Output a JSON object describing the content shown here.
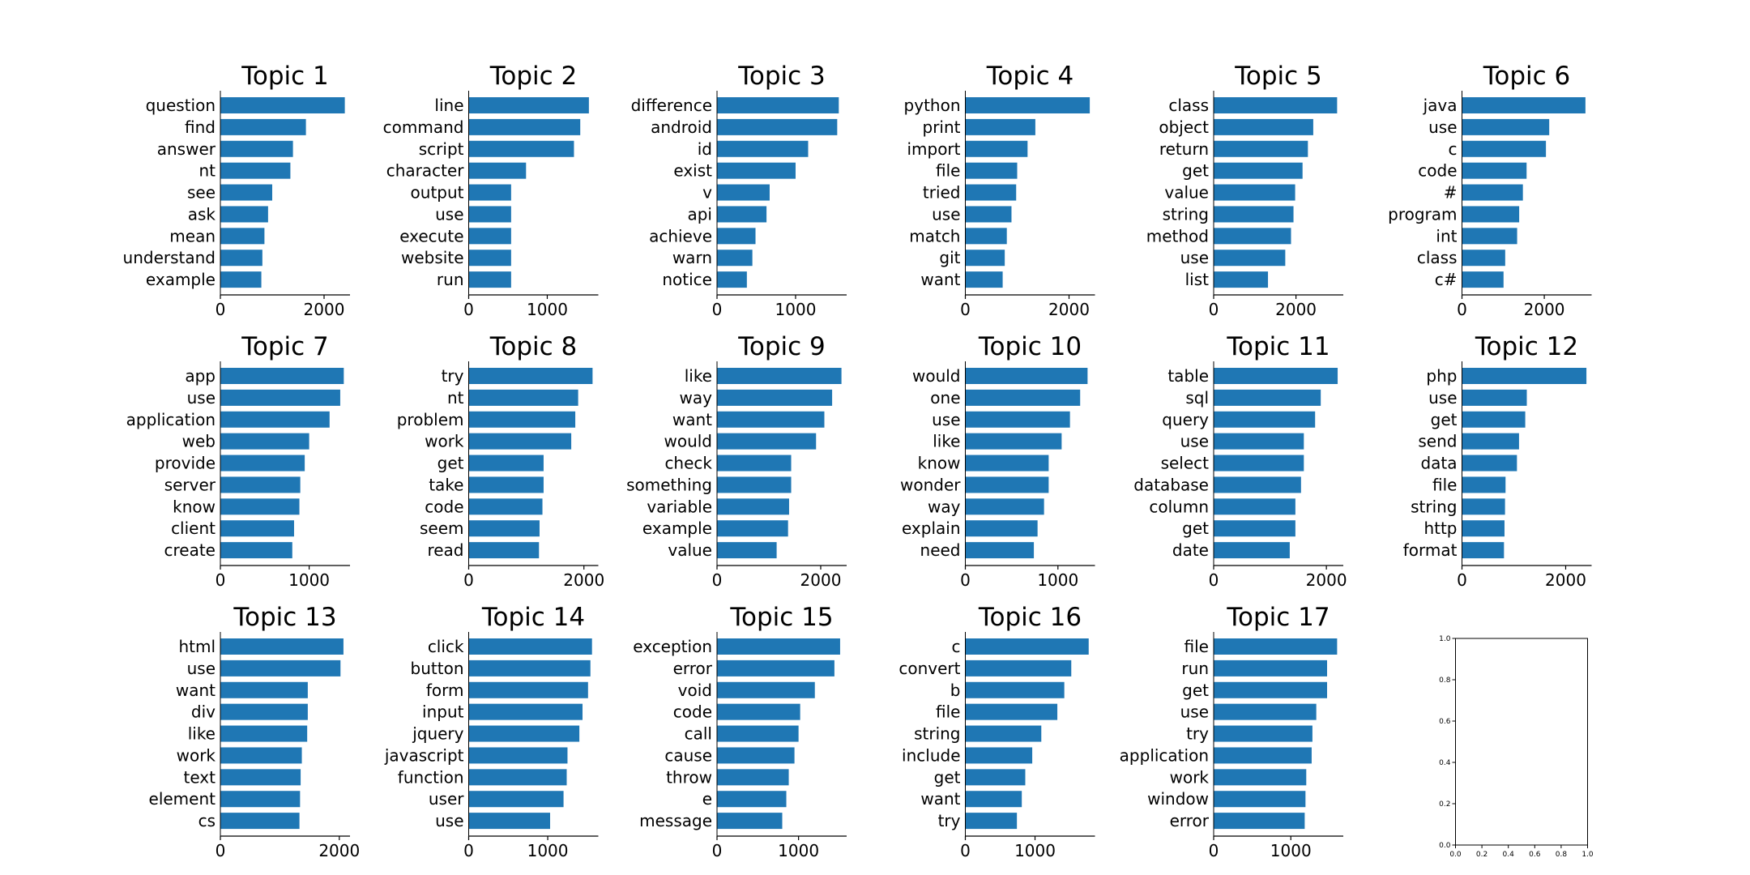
{
  "figure": {
    "bar_color": "#1f77b4",
    "background": "#ffffff",
    "text_color": "#000000"
  },
  "chart_data": [
    {
      "type": "bar",
      "orientation": "horizontal",
      "title": "Topic 1",
      "categories": [
        "question",
        "find",
        "answer",
        "nt",
        "see",
        "ask",
        "mean",
        "understand",
        "example"
      ],
      "values": [
        2400,
        1650,
        1400,
        1350,
        1000,
        920,
        850,
        810,
        790
      ],
      "xlim": [
        0,
        2500
      ],
      "xticks": [
        0,
        2000
      ]
    },
    {
      "type": "bar",
      "orientation": "horizontal",
      "title": "Topic 2",
      "categories": [
        "line",
        "command",
        "script",
        "character",
        "output",
        "use",
        "execute",
        "website",
        "run"
      ],
      "values": [
        1530,
        1420,
        1340,
        730,
        540,
        540,
        540,
        540,
        540
      ],
      "xlim": [
        0,
        1650
      ],
      "xticks": [
        0,
        1000
      ]
    },
    {
      "type": "bar",
      "orientation": "horizontal",
      "title": "Topic 3",
      "categories": [
        "difference",
        "android",
        "id",
        "exist",
        "v",
        "api",
        "achieve",
        "warn",
        "notice"
      ],
      "values": [
        1550,
        1530,
        1160,
        1000,
        670,
        630,
        490,
        450,
        380
      ],
      "xlim": [
        0,
        1650
      ],
      "xticks": [
        0,
        1000
      ]
    },
    {
      "type": "bar",
      "orientation": "horizontal",
      "title": "Topic 4",
      "categories": [
        "python",
        "print",
        "import",
        "file",
        "tried",
        "use",
        "match",
        "git",
        "want"
      ],
      "values": [
        2400,
        1350,
        1200,
        1000,
        980,
        890,
        800,
        760,
        720
      ],
      "xlim": [
        0,
        2500
      ],
      "xticks": [
        0,
        2000
      ]
    },
    {
      "type": "bar",
      "orientation": "horizontal",
      "title": "Topic 5",
      "categories": [
        "class",
        "object",
        "return",
        "get",
        "value",
        "string",
        "method",
        "use",
        "list"
      ],
      "values": [
        3000,
        2420,
        2290,
        2160,
        1980,
        1940,
        1880,
        1740,
        1320
      ],
      "xlim": [
        0,
        3150
      ],
      "xticks": [
        0,
        2000
      ]
    },
    {
      "type": "bar",
      "orientation": "horizontal",
      "title": "Topic 6",
      "categories": [
        "java",
        "use",
        "c",
        "code",
        "#",
        "program",
        "int",
        "class",
        "c#"
      ],
      "values": [
        3000,
        2120,
        2040,
        1570,
        1480,
        1390,
        1340,
        1050,
        1010
      ],
      "xlim": [
        0,
        3150
      ],
      "xticks": [
        0,
        2000
      ]
    },
    {
      "type": "bar",
      "orientation": "horizontal",
      "title": "Topic 7",
      "categories": [
        "app",
        "use",
        "application",
        "web",
        "provide",
        "server",
        "know",
        "client",
        "create"
      ],
      "values": [
        1390,
        1350,
        1230,
        1000,
        950,
        900,
        890,
        830,
        810
      ],
      "xlim": [
        0,
        1460
      ],
      "xticks": [
        0,
        1000
      ]
    },
    {
      "type": "bar",
      "orientation": "horizontal",
      "title": "Topic 8",
      "categories": [
        "try",
        "nt",
        "problem",
        "work",
        "get",
        "take",
        "code",
        "seem",
        "read"
      ],
      "values": [
        2150,
        1900,
        1850,
        1780,
        1300,
        1300,
        1280,
        1230,
        1220
      ],
      "xlim": [
        0,
        2250
      ],
      "xticks": [
        0,
        2000
      ]
    },
    {
      "type": "bar",
      "orientation": "horizontal",
      "title": "Topic 9",
      "categories": [
        "like",
        "way",
        "want",
        "would",
        "check",
        "something",
        "variable",
        "example",
        "value"
      ],
      "values": [
        2400,
        2220,
        2070,
        1910,
        1430,
        1430,
        1390,
        1370,
        1150
      ],
      "xlim": [
        0,
        2500
      ],
      "xticks": [
        0,
        2000
      ]
    },
    {
      "type": "bar",
      "orientation": "horizontal",
      "title": "Topic 10",
      "categories": [
        "would",
        "one",
        "use",
        "like",
        "know",
        "wonder",
        "way",
        "explain",
        "need"
      ],
      "values": [
        1320,
        1240,
        1130,
        1040,
        900,
        900,
        850,
        780,
        740
      ],
      "xlim": [
        0,
        1400
      ],
      "xticks": [
        0,
        1000
      ]
    },
    {
      "type": "bar",
      "orientation": "horizontal",
      "title": "Topic 11",
      "categories": [
        "table",
        "sql",
        "query",
        "use",
        "select",
        "database",
        "column",
        "get",
        "date"
      ],
      "values": [
        2200,
        1900,
        1800,
        1600,
        1600,
        1550,
        1450,
        1450,
        1350
      ],
      "xlim": [
        0,
        2300
      ],
      "xticks": [
        0,
        2000
      ]
    },
    {
      "type": "bar",
      "orientation": "horizontal",
      "title": "Topic 12",
      "categories": [
        "php",
        "use",
        "get",
        "send",
        "data",
        "file",
        "string",
        "http",
        "format"
      ],
      "values": [
        2400,
        1250,
        1220,
        1100,
        1060,
        840,
        830,
        820,
        810
      ],
      "xlim": [
        0,
        2500
      ],
      "xticks": [
        0,
        2000
      ]
    },
    {
      "type": "bar",
      "orientation": "horizontal",
      "title": "Topic 13",
      "categories": [
        "html",
        "use",
        "want",
        "div",
        "like",
        "work",
        "text",
        "element",
        "cs"
      ],
      "values": [
        2070,
        2020,
        1470,
        1470,
        1460,
        1370,
        1350,
        1340,
        1330
      ],
      "xlim": [
        0,
        2180
      ],
      "xticks": [
        0,
        2000
      ]
    },
    {
      "type": "bar",
      "orientation": "horizontal",
      "title": "Topic 14",
      "categories": [
        "click",
        "button",
        "form",
        "input",
        "jquery",
        "javascript",
        "function",
        "user",
        "use"
      ],
      "values": [
        1560,
        1540,
        1510,
        1440,
        1400,
        1250,
        1240,
        1200,
        1030
      ],
      "xlim": [
        0,
        1640
      ],
      "xticks": [
        0,
        1000
      ]
    },
    {
      "type": "bar",
      "orientation": "horizontal",
      "title": "Topic 15",
      "categories": [
        "exception",
        "error",
        "void",
        "code",
        "call",
        "cause",
        "throw",
        "e",
        "message"
      ],
      "values": [
        1510,
        1440,
        1200,
        1020,
        1000,
        950,
        880,
        850,
        800
      ],
      "xlim": [
        0,
        1590
      ],
      "xticks": [
        0,
        1000
      ]
    },
    {
      "type": "bar",
      "orientation": "horizontal",
      "title": "Topic 16",
      "categories": [
        "c",
        "convert",
        "b",
        "file",
        "string",
        "include",
        "get",
        "want",
        "try"
      ],
      "values": [
        1770,
        1520,
        1420,
        1320,
        1090,
        960,
        860,
        810,
        740
      ],
      "xlim": [
        0,
        1860
      ],
      "xticks": [
        0,
        1000
      ]
    },
    {
      "type": "bar",
      "orientation": "horizontal",
      "title": "Topic 17",
      "categories": [
        "file",
        "run",
        "get",
        "use",
        "try",
        "application",
        "work",
        "window",
        "error"
      ],
      "values": [
        1600,
        1470,
        1470,
        1330,
        1280,
        1270,
        1200,
        1190,
        1180
      ],
      "xlim": [
        0,
        1680
      ],
      "xticks": [
        0,
        1000
      ]
    },
    {
      "type": "empty",
      "title": "",
      "xlim": [
        0,
        1
      ],
      "ylim": [
        0,
        1
      ],
      "xticks": [
        "0.0",
        "0.2",
        "0.4",
        "0.6",
        "0.8",
        "1.0"
      ],
      "yticks": [
        "0.0",
        "0.2",
        "0.4",
        "0.6",
        "0.8",
        "1.0"
      ]
    }
  ]
}
